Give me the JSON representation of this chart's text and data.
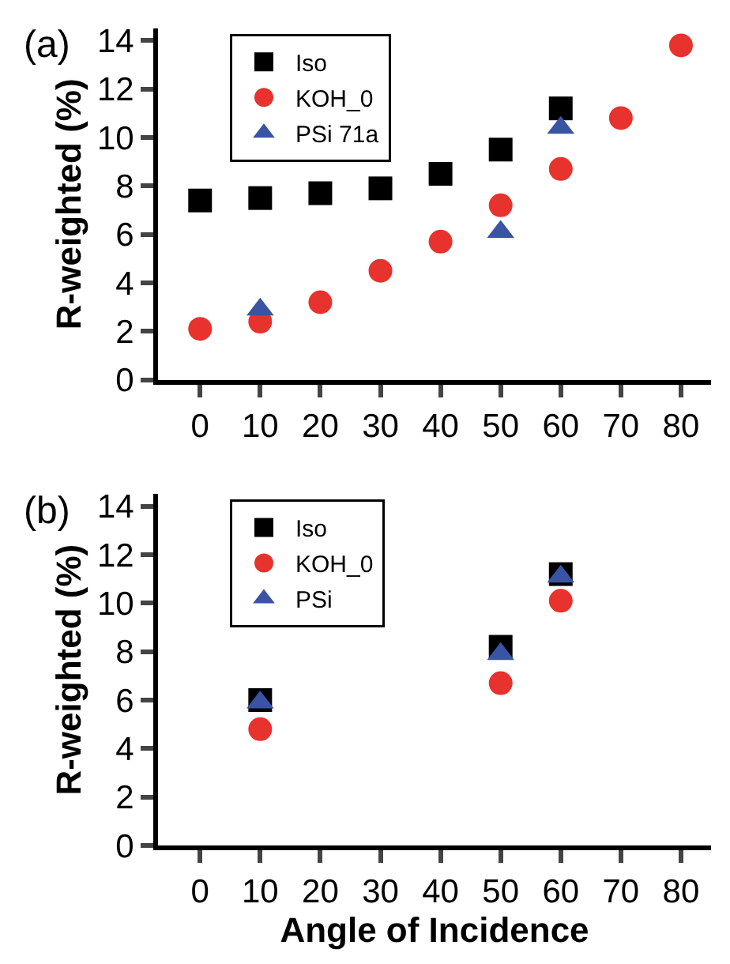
{
  "chart_data": [
    {
      "type": "scatter",
      "title": "(a)",
      "ylabel": "R-weighted (%)",
      "xlim": [
        -7,
        85
      ],
      "xticks": [
        0,
        10,
        20,
        30,
        40,
        50,
        60,
        70,
        80
      ],
      "ylim": [
        0,
        14.5
      ],
      "yticks": [
        0,
        2,
        4,
        6,
        8,
        10,
        12,
        14
      ],
      "legend": "top left",
      "series": [
        {
          "name": "Iso",
          "color": "#000000",
          "marker": "square",
          "x": [
            0,
            10,
            20,
            30,
            40,
            50,
            60
          ],
          "values": [
            7.4,
            7.5,
            7.7,
            7.9,
            8.5,
            9.5,
            11.2
          ]
        },
        {
          "name": "KOH_0",
          "color": "#e8322d",
          "marker": "circle",
          "x": [
            0,
            10,
            20,
            30,
            40,
            50,
            60,
            70,
            80
          ],
          "values": [
            2.1,
            2.4,
            3.2,
            4.5,
            5.7,
            7.2,
            8.7,
            10.8,
            13.8
          ]
        },
        {
          "name": "PSi 71a",
          "color": "#3a53a4",
          "marker": "triangle",
          "x": [
            10,
            50,
            60
          ],
          "values": [
            2.9,
            6.1,
            10.4
          ]
        }
      ]
    },
    {
      "type": "scatter",
      "title": "(b)",
      "xlabel": "Angle of Incidence",
      "ylabel": "R-weighted (%)",
      "xlim": [
        -7,
        85
      ],
      "xticks": [
        0,
        10,
        20,
        30,
        40,
        50,
        60,
        70,
        80
      ],
      "ylim": [
        0,
        14.5
      ],
      "yticks": [
        0,
        2,
        4,
        6,
        8,
        10,
        12,
        14
      ],
      "legend": "top left",
      "series": [
        {
          "name": "Iso",
          "color": "#000000",
          "marker": "square",
          "x": [
            10,
            50,
            60
          ],
          "values": [
            6.0,
            8.2,
            11.2
          ]
        },
        {
          "name": "KOH_0",
          "color": "#e8322d",
          "marker": "circle",
          "x": [
            10,
            50,
            60
          ],
          "values": [
            4.8,
            6.7,
            10.1
          ]
        },
        {
          "name": "PSi",
          "color": "#3a53a4",
          "marker": "triangle",
          "x": [
            10,
            50,
            60
          ],
          "values": [
            5.9,
            7.9,
            11.1
          ]
        }
      ]
    }
  ]
}
